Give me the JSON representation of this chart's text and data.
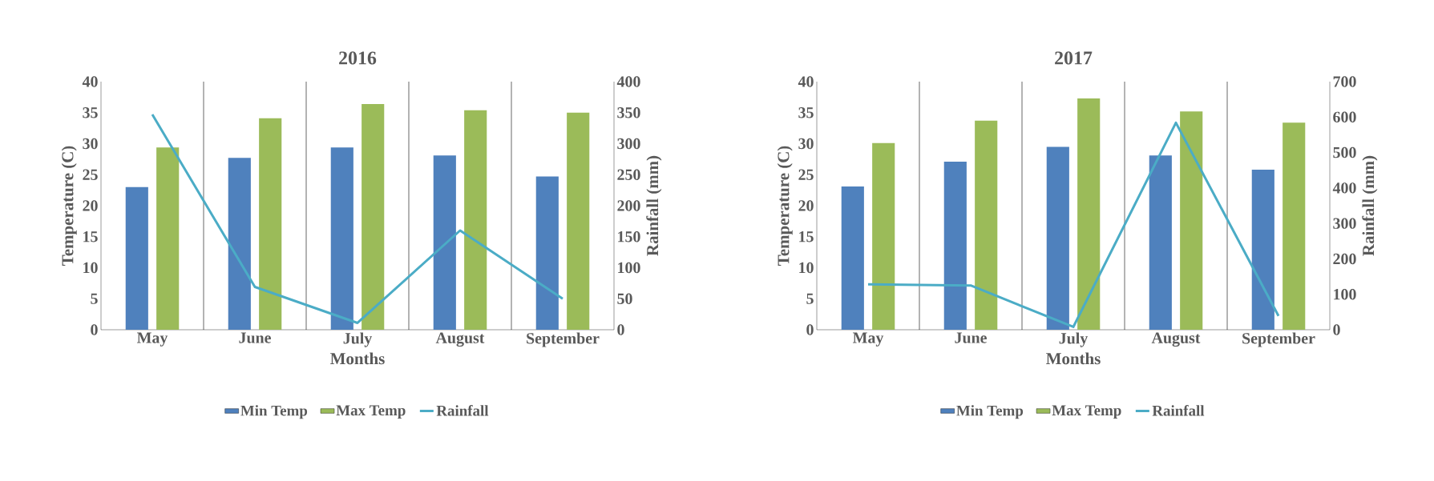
{
  "chart_data": [
    {
      "type": "bar",
      "title": "2016",
      "xlabel": "Months",
      "ylabel": "Temperature  (C)",
      "y2label": "Rainfall (mm)",
      "categories": [
        "May",
        "June",
        "July",
        "August",
        "September"
      ],
      "series": [
        {
          "name": "Min Temp",
          "color": "#4f81bd",
          "values": [
            23.0,
            27.7,
            29.4,
            28.1,
            24.7
          ]
        },
        {
          "name": "Max Temp",
          "color": "#9bbb59",
          "values": [
            29.4,
            34.1,
            36.4,
            35.4,
            35.0
          ]
        },
        {
          "name": "Rainfall",
          "color": "#4bacc6",
          "type": "line",
          "axis": "y2",
          "values": [
            347,
            69,
            11,
            160,
            50
          ]
        }
      ],
      "ylim": [
        0,
        40
      ],
      "yticks": [
        0,
        5,
        10,
        15,
        20,
        25,
        30,
        35,
        40
      ],
      "y2lim": [
        0,
        400
      ],
      "y2ticks": [
        0,
        50,
        100,
        150,
        200,
        250,
        300,
        350,
        400
      ],
      "grid": "x",
      "legend": "bottom"
    },
    {
      "type": "bar",
      "title": "2017",
      "xlabel": "Months",
      "ylabel": "Temperature  (C)",
      "y2label": "Rainfall (mm)",
      "categories": [
        "May",
        "June",
        "July",
        "August",
        "September"
      ],
      "series": [
        {
          "name": "Min Temp",
          "color": "#4f81bd",
          "values": [
            23.1,
            27.1,
            29.5,
            28.1,
            25.8
          ]
        },
        {
          "name": "Max Temp",
          "color": "#9bbb59",
          "values": [
            30.1,
            33.7,
            37.3,
            35.2,
            33.4
          ]
        },
        {
          "name": "Rainfall",
          "color": "#4bacc6",
          "type": "line",
          "axis": "y2",
          "values": [
            128,
            125,
            8,
            584,
            39
          ]
        }
      ],
      "ylim": [
        0,
        40
      ],
      "yticks": [
        0,
        5,
        10,
        15,
        20,
        25,
        30,
        35,
        40
      ],
      "y2lim": [
        0,
        700
      ],
      "y2ticks": [
        0,
        100,
        200,
        300,
        400,
        500,
        600,
        700
      ],
      "grid": "x",
      "legend": "bottom"
    }
  ]
}
